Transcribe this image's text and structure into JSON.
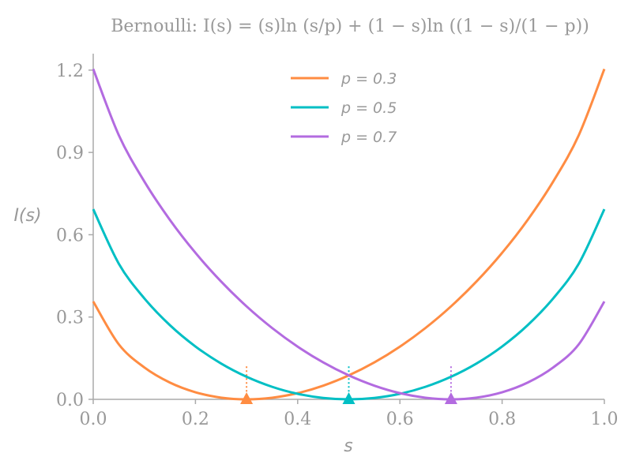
{
  "chart_data": {
    "type": "line",
    "title": "Bernoulli:  I(s) = (s)ln (s/p) + (1 − s)ln ((1 − s)/(1 − p))",
    "xlabel": "s",
    "ylabel": "I(s)",
    "xlim": [
      0,
      1
    ],
    "ylim": [
      0,
      1.26
    ],
    "xticks": [
      "0.0",
      "0.2",
      "0.4",
      "0.6",
      "0.8",
      "1.0"
    ],
    "yticks": [
      "0.0",
      "0.3",
      "0.6",
      "0.9",
      "1.2"
    ],
    "grid": false,
    "legend_position": "top-center",
    "x": [
      0,
      0.05,
      0.1,
      0.15,
      0.2,
      0.25,
      0.3,
      0.35,
      0.4,
      0.45,
      0.5,
      0.55,
      0.6,
      0.65,
      0.7,
      0.75,
      0.8,
      0.85,
      0.9,
      0.95,
      1.0
    ],
    "series": [
      {
        "name": "p = 0.3",
        "p": 0.3,
        "color": "#ff8c42",
        "values": [
          0.3567,
          0.2006,
          0.1163,
          0.0611,
          0.0258,
          0.0062,
          0,
          0.0059,
          0.0226,
          0.0499,
          0.0873,
          0.1346,
          0.1921,
          0.26,
          0.3389,
          0.4299,
          0.5341,
          0.6542,
          0.7942,
          0.9631,
          1.204
        ]
      },
      {
        "name": "p = 0.5",
        "p": 0.5,
        "color": "#00bfc4",
        "values": [
          0.6931,
          0.4946,
          0.3681,
          0.2704,
          0.1927,
          0.1308,
          0.0823,
          0.0457,
          0.0201,
          0.005,
          0,
          0.005,
          0.0201,
          0.0457,
          0.0823,
          0.1308,
          0.1927,
          0.2704,
          0.3681,
          0.4946,
          0.6931
        ]
      },
      {
        "name": "p = 0.7",
        "p": 0.7,
        "color": "#b36be0",
        "values": [
          1.204,
          0.9631,
          0.7942,
          0.6542,
          0.5341,
          0.4299,
          0.3389,
          0.26,
          0.1921,
          0.1346,
          0.0873,
          0.0499,
          0.0226,
          0.0059,
          0,
          0.0062,
          0.0258,
          0.0611,
          0.1163,
          0.2006,
          0.3567
        ]
      }
    ],
    "markers": {
      "shape": "triangle",
      "at": "s = p",
      "guide_line_height": 0.12
    }
  }
}
